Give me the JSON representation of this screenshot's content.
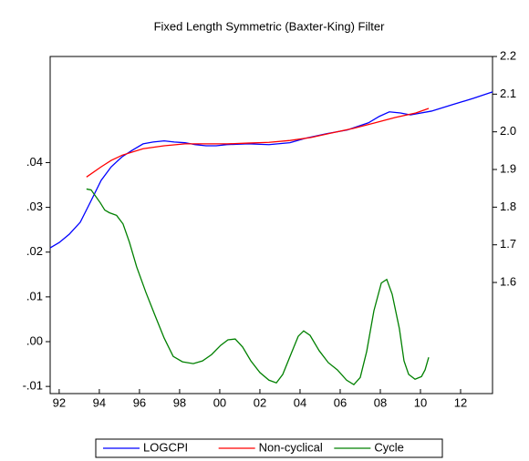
{
  "chart_data": {
    "type": "line",
    "title": "Fixed Length Symmetric (Baxter-King) Filter",
    "xlim": [
      1991.55,
      2013.59
    ],
    "xticks": [
      {
        "value": 1992,
        "label": "92"
      },
      {
        "value": 1994,
        "label": "94"
      },
      {
        "value": 1996,
        "label": "96"
      },
      {
        "value": 1998,
        "label": "98"
      },
      {
        "value": 2000,
        "label": "00"
      },
      {
        "value": 2002,
        "label": "02"
      },
      {
        "value": 2004,
        "label": "04"
      },
      {
        "value": 2006,
        "label": "06"
      },
      {
        "value": 2008,
        "label": "08"
      },
      {
        "value": 2010,
        "label": "10"
      },
      {
        "value": 2012,
        "label": "12"
      }
    ],
    "ylim": [
      -0.0116,
      0.0637
    ],
    "yticks": [
      {
        "value": -0.01,
        "label": "-.01"
      },
      {
        "value": 0,
        "label": ".00"
      },
      {
        "value": 0.01,
        "label": ".01"
      },
      {
        "value": 0.02,
        "label": ".02"
      },
      {
        "value": 0.03,
        "label": ".03"
      },
      {
        "value": 0.04,
        "label": ".04"
      }
    ],
    "y2lim": [
      1.305,
      2.2
    ],
    "y2ticks": [
      1.6,
      1.7,
      1.8,
      1.9,
      {
        "value": 2,
        "label": "2.0"
      },
      2.1,
      2.2
    ],
    "legend": "bottom",
    "series": [
      {
        "name": "LOGCPI",
        "color": "#0000ff",
        "axis": "y2",
        "x": [
          1991.55,
          1992.0,
          1992.5,
          1993.05,
          1993.55,
          1994.09,
          1994.59,
          1995.14,
          1995.64,
          1996.18,
          1996.68,
          1997.23,
          1997.73,
          1998.27,
          1998.77,
          1999.32,
          1999.82,
          2000.36,
          2001.41,
          2002.45,
          2003.5,
          2004.27,
          2005.32,
          2006.36,
          2007.41,
          2007.95,
          2008.45,
          2009.0,
          2009.5,
          2010.55,
          2011.59,
          2012.64,
          2013.59
        ],
        "values": [
          1.692,
          1.706,
          1.728,
          1.76,
          1.813,
          1.871,
          1.907,
          1.934,
          1.951,
          1.968,
          1.973,
          1.976,
          1.973,
          1.971,
          1.966,
          1.963,
          1.963,
          1.966,
          1.968,
          1.966,
          1.971,
          1.983,
          1.995,
          2.005,
          2.024,
          2.041,
          2.053,
          2.05,
          2.045,
          2.055,
          2.072,
          2.089,
          2.106
        ]
      },
      {
        "name": "Non-cyclical",
        "color": "#ff0000",
        "axis": "y2",
        "x": [
          1993.36,
          1994.09,
          1994.59,
          1995.14,
          1996.18,
          1997.23,
          1998.27,
          1999.32,
          2000.36,
          2001.41,
          2002.45,
          2003.5,
          2004.55,
          2005.59,
          2006.64,
          2007.68,
          2008.73,
          2009.77,
          2010.41
        ],
        "values": [
          1.88,
          1.907,
          1.924,
          1.938,
          1.955,
          1.963,
          1.968,
          1.968,
          1.968,
          1.97,
          1.972,
          1.977,
          1.985,
          1.997,
          2.009,
          2.023,
          2.038,
          2.05,
          2.062
        ]
      },
      {
        "name": "Cycle",
        "color": "#008000",
        "x": [
          1993.36,
          1993.59,
          1994.05,
          1994.27,
          1994.5,
          1994.86,
          1995.18,
          1995.5,
          1995.86,
          1996.32,
          1996.77,
          1997.23,
          1997.68,
          1998.14,
          1998.68,
          1999.14,
          1999.59,
          2000.05,
          2000.41,
          2000.77,
          2001.14,
          2001.55,
          2002.0,
          2002.45,
          2002.82,
          2003.14,
          2003.5,
          2003.91,
          2004.18,
          2004.5,
          2004.95,
          2005.41,
          2005.86,
          2006.32,
          2006.68,
          2007.0,
          2007.32,
          2007.68,
          2008.05,
          2008.32,
          2008.59,
          2008.95,
          2009.18,
          2009.41,
          2009.73,
          2010.05,
          2010.23,
          2010.41
        ],
        "values": [
          0.0341,
          0.0339,
          0.031,
          0.0294,
          0.0288,
          0.0282,
          0.0263,
          0.0222,
          0.0167,
          0.011,
          0.0059,
          0.0008,
          -0.0033,
          -0.0045,
          -0.0049,
          -0.0043,
          -0.0029,
          -0.0008,
          0.0004,
          0.0006,
          -0.0012,
          -0.0043,
          -0.0069,
          -0.0086,
          -0.0092,
          -0.0073,
          -0.0033,
          0.0012,
          0.0024,
          0.0014,
          -0.002,
          -0.0047,
          -0.0063,
          -0.0086,
          -0.0096,
          -0.008,
          -0.0022,
          0.0069,
          0.0131,
          0.0139,
          0.0106,
          0.0029,
          -0.0043,
          -0.0073,
          -0.0084,
          -0.0078,
          -0.0063,
          -0.0035
        ]
      }
    ]
  }
}
